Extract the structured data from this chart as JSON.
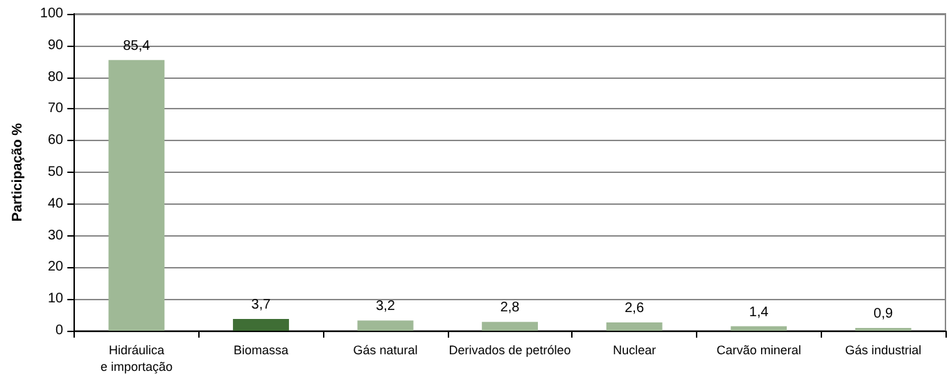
{
  "chart_data": {
    "type": "bar",
    "ylabel": "Participação %",
    "categories": [
      "Hidráulica\ne importação",
      "Biomassa",
      "Gás natural",
      "Derivados de petróleo",
      "Nuclear",
      "Carvão mineral",
      "Gás industrial"
    ],
    "values": [
      85.4,
      3.7,
      3.2,
      2.8,
      2.6,
      1.4,
      0.9
    ],
    "colors": [
      "#9fb996",
      "#3f6e35",
      "#9fb996",
      "#9fb996",
      "#9fb996",
      "#9fb996",
      "#9fb996"
    ],
    "value_labels": [
      "85,4",
      "3,7",
      "3,2",
      "2,8",
      "2,6",
      "1,4",
      "0,9"
    ],
    "ylim": [
      0,
      100
    ],
    "yticks": [
      0,
      10,
      20,
      30,
      40,
      50,
      60,
      70,
      80,
      90,
      100
    ],
    "grid": "y"
  }
}
